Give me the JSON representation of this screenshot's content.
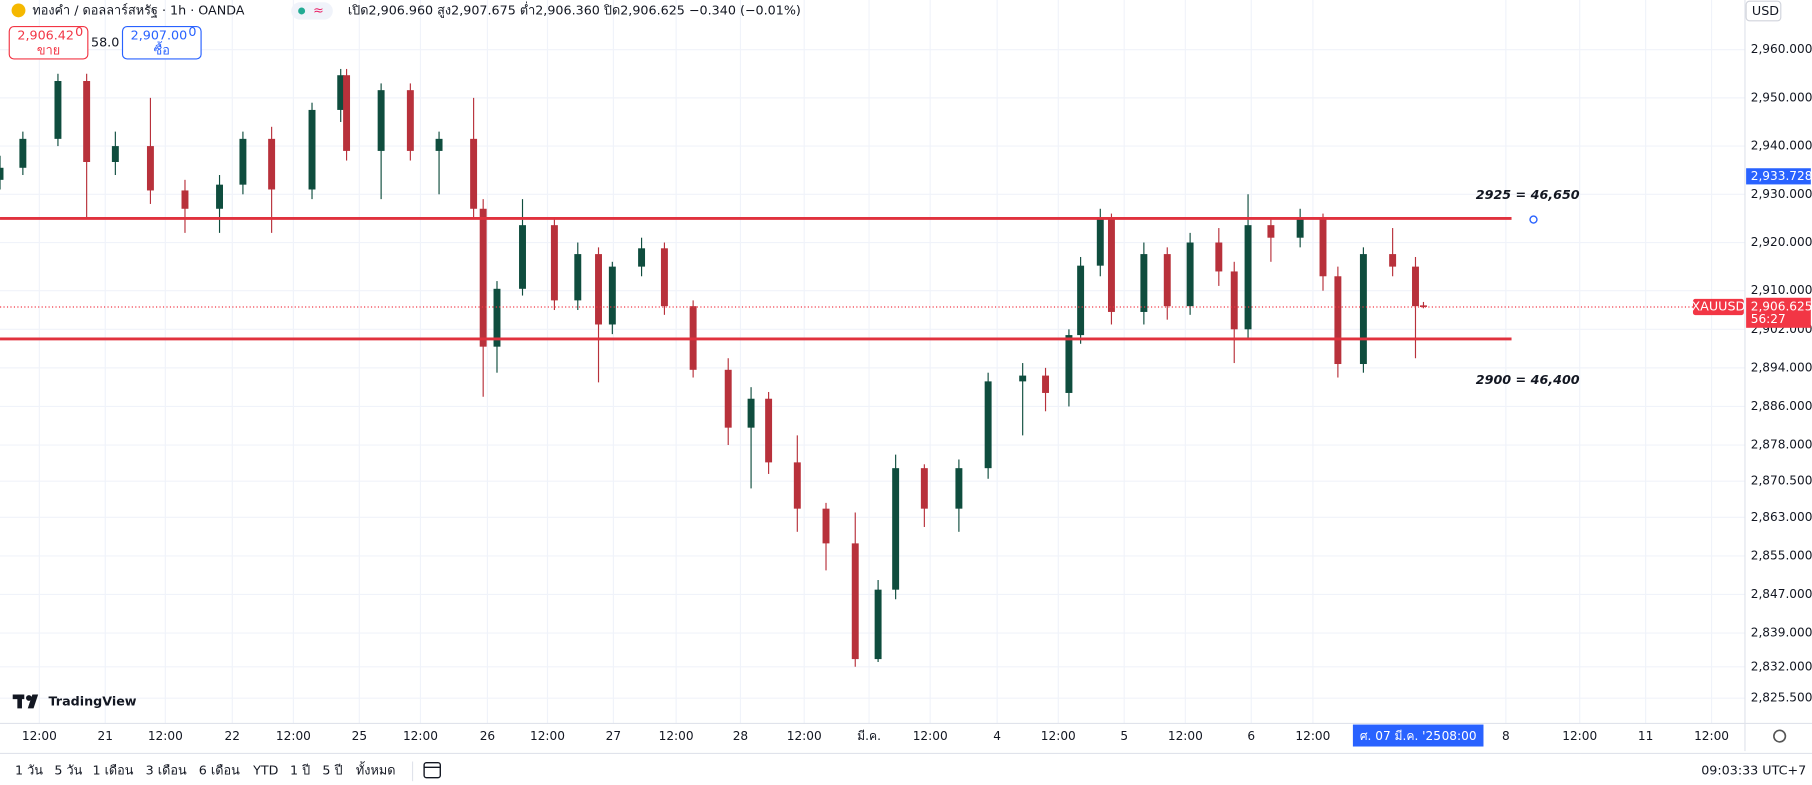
{
  "header": {
    "symbol": "ทองคำ / ดอลลาร์สหรัฐ · 1h · OANDA",
    "ohlc": "เปิด2,906.960 สูง2,907.675 ต่ำ2,906.360 ปิด2,906.625 −0.340 (−0.01%)",
    "sell_price": "2,906.42",
    "sell_sup": "0",
    "sell_label": "ขาย",
    "spread": "58.0",
    "buy_price": "2,907.00",
    "buy_sup": "0",
    "buy_label": "ซื้อ",
    "currency": "USD",
    "logo": "TradingView"
  },
  "toolbar": {
    "ranges": [
      "1 วัน",
      "5 วัน",
      "1 เดือน",
      "3 เดือน",
      "6 เดือน",
      "YTD",
      "1 ปี",
      "5 ปี",
      "ทั้งหมด"
    ],
    "clock": "09:03:33 UTC+7"
  },
  "chart_data": {
    "type": "candlestick",
    "up_color": "#0f4d3e",
    "down_color": "#b8313b",
    "xlim": [
      0,
      327.2
    ],
    "ylim": [
      2820.5,
      2970.3
    ],
    "grid": true,
    "yticks": [
      {
        "value": 2960,
        "label": "2,960.000"
      },
      {
        "value": 2950,
        "label": "2,950.000"
      },
      {
        "value": 2940,
        "label": "2,940.000"
      },
      {
        "value": 2930,
        "label": "2,930.000"
      },
      {
        "value": 2920,
        "label": "2,920.000"
      },
      {
        "value": 2910,
        "label": "2,910.000"
      },
      {
        "value": 2902,
        "label": "2,902.000"
      },
      {
        "value": 2894,
        "label": "2,894.000"
      },
      {
        "value": 2886,
        "label": "2,886.000"
      },
      {
        "value": 2878,
        "label": "2,878.000"
      },
      {
        "value": 2870.5,
        "label": "2,870.500"
      },
      {
        "value": 2863,
        "label": "2,863.000"
      },
      {
        "value": 2855,
        "label": "2,855.000"
      },
      {
        "value": 2847,
        "label": "2,847.000"
      },
      {
        "value": 2839,
        "label": "2,839.000"
      },
      {
        "value": 2832,
        "label": "2,832.000"
      },
      {
        "value": 2825.5,
        "label": "2,825.500"
      }
    ],
    "xticks": [
      {
        "value": 7.4,
        "label": "12:00"
      },
      {
        "value": 19.8,
        "label": "21"
      },
      {
        "value": 31.1,
        "label": "12:00"
      },
      {
        "value": 43.7,
        "label": "22"
      },
      {
        "value": 55.2,
        "label": "12:00"
      },
      {
        "value": 67.6,
        "label": "25"
      },
      {
        "value": 79.1,
        "label": "12:00"
      },
      {
        "value": 91.7,
        "label": "26"
      },
      {
        "value": 103,
        "label": "12:00"
      },
      {
        "value": 115.4,
        "label": "27"
      },
      {
        "value": 127.2,
        "label": "12:00"
      },
      {
        "value": 139.3,
        "label": "28"
      },
      {
        "value": 151.3,
        "label": "12:00"
      },
      {
        "value": 163.5,
        "label": "มี.ค."
      },
      {
        "value": 175,
        "label": "12:00"
      },
      {
        "value": 187.6,
        "label": "4"
      },
      {
        "value": 199.1,
        "label": "12:00"
      },
      {
        "value": 211.5,
        "label": "5"
      },
      {
        "value": 223,
        "label": "12:00"
      },
      {
        "value": 235.4,
        "label": "6"
      },
      {
        "value": 247,
        "label": "12:00"
      },
      {
        "value": 283.3,
        "label": "8"
      },
      {
        "value": 297.2,
        "label": "12:00"
      },
      {
        "value": 309.6,
        "label": "11"
      },
      {
        "value": 322,
        "label": "12:00"
      }
    ],
    "crosshair": {
      "value": 266.7,
      "label": "ศ. 07 มี.ค. '25",
      "time": "08:00"
    },
    "levels": [
      {
        "value": 2925,
        "label": "2925 = 46,650",
        "color": "#e0323e"
      },
      {
        "value": 2900,
        "label": "2900 = 46,400",
        "color": "#e0323e"
      }
    ],
    "current_price": {
      "value": 2906.625,
      "label": "2,906.625",
      "symbol": "XAUUSD",
      "countdown": "56:27",
      "color": "#f23645"
    },
    "marker_price": {
      "value": 2933.728,
      "label": "2,933.728",
      "color": "#2962ff"
    },
    "x": [
      0,
      4.3,
      10.9,
      16.3,
      21.7,
      28.3,
      34.8,
      41.3,
      45.7,
      51.1,
      58.7,
      64.1,
      65.2,
      71.7,
      77.2,
      82.6,
      89.1,
      90.9,
      93.5,
      98.3,
      104.3,
      108.7,
      112.6,
      115.2,
      120.7,
      125,
      130.4,
      137,
      141.3,
      144.6,
      150,
      155.4,
      160.9,
      165.2,
      168.5,
      173.9,
      180.4,
      185.9,
      192.4,
      196.7,
      201.1,
      203.3,
      207,
      209.1,
      215.2,
      219.6,
      223.9,
      229.3,
      232.2,
      234.8,
      239.1,
      244.6,
      248.9,
      251.7,
      256.5,
      262,
      266.3,
      267.8
    ],
    "candles": [
      {
        "o": 2933,
        "h": 2938,
        "l": 2931,
        "c": 2935.5
      },
      {
        "o": 2935.5,
        "h": 2943,
        "l": 2934,
        "c": 2941.5
      },
      {
        "o": 2941.5,
        "h": 2955,
        "l": 2940,
        "c": 2953.5
      },
      {
        "o": 2953.5,
        "h": 2955,
        "l": 2925,
        "c": 2936.7
      },
      {
        "o": 2936.7,
        "h": 2943,
        "l": 2934,
        "c": 2940
      },
      {
        "o": 2940,
        "h": 2950,
        "l": 2928,
        "c": 2930.8
      },
      {
        "o": 2930.8,
        "h": 2933,
        "l": 2922,
        "c": 2927
      },
      {
        "o": 2927,
        "h": 2934,
        "l": 2922,
        "c": 2932
      },
      {
        "o": 2932,
        "h": 2943,
        "l": 2930,
        "c": 2941.5
      },
      {
        "o": 2941.5,
        "h": 2944,
        "l": 2922,
        "c": 2931
      },
      {
        "o": 2931,
        "h": 2949,
        "l": 2929,
        "c": 2947.5
      },
      {
        "o": 2947.5,
        "h": 2956,
        "l": 2945,
        "c": 2954.7
      },
      {
        "o": 2954.7,
        "h": 2956,
        "l": 2937,
        "c": 2939
      },
      {
        "o": 2939,
        "h": 2953,
        "l": 2929,
        "c": 2951.6
      },
      {
        "o": 2951.6,
        "h": 2953,
        "l": 2937,
        "c": 2939
      },
      {
        "o": 2939,
        "h": 2943,
        "l": 2930,
        "c": 2941.5
      },
      {
        "o": 2941.5,
        "h": 2950,
        "l": 2925,
        "c": 2927
      },
      {
        "o": 2927,
        "h": 2929,
        "l": 2888,
        "c": 2898.4
      },
      {
        "o": 2898.4,
        "h": 2912,
        "l": 2893,
        "c": 2910.4
      },
      {
        "o": 2910.4,
        "h": 2929,
        "l": 2909,
        "c": 2923.6
      },
      {
        "o": 2923.6,
        "h": 2925,
        "l": 2906,
        "c": 2908
      },
      {
        "o": 2908,
        "h": 2920,
        "l": 2906,
        "c": 2917.6
      },
      {
        "o": 2917.6,
        "h": 2919,
        "l": 2891,
        "c": 2903
      },
      {
        "o": 2903,
        "h": 2916,
        "l": 2901,
        "c": 2915
      },
      {
        "o": 2915,
        "h": 2921,
        "l": 2913,
        "c": 2918.8
      },
      {
        "o": 2918.8,
        "h": 2920,
        "l": 2905,
        "c": 2906.8
      },
      {
        "o": 2906.8,
        "h": 2908,
        "l": 2892,
        "c": 2893.6
      },
      {
        "o": 2893.6,
        "h": 2896,
        "l": 2878,
        "c": 2881.6
      },
      {
        "o": 2881.6,
        "h": 2890,
        "l": 2869,
        "c": 2887.6
      },
      {
        "o": 2887.6,
        "h": 2889,
        "l": 2872,
        "c": 2874.4
      },
      {
        "o": 2874.4,
        "h": 2880,
        "l": 2860,
        "c": 2864.8
      },
      {
        "o": 2864.8,
        "h": 2866,
        "l": 2852,
        "c": 2857.6
      },
      {
        "o": 2857.6,
        "h": 2864,
        "l": 2832,
        "c": 2833.6
      },
      {
        "o": 2833.6,
        "h": 2850,
        "l": 2833,
        "c": 2848
      },
      {
        "o": 2848,
        "h": 2876,
        "l": 2846,
        "c": 2873.2
      },
      {
        "o": 2873.2,
        "h": 2874,
        "l": 2861,
        "c": 2864.8
      },
      {
        "o": 2864.8,
        "h": 2875,
        "l": 2860,
        "c": 2873.2
      },
      {
        "o": 2873.2,
        "h": 2893,
        "l": 2871,
        "c": 2891.2
      },
      {
        "o": 2891.2,
        "h": 2895,
        "l": 2880,
        "c": 2892.4
      },
      {
        "o": 2892.4,
        "h": 2894,
        "l": 2885,
        "c": 2888.8
      },
      {
        "o": 2888.8,
        "h": 2902,
        "l": 2886,
        "c": 2900.8
      },
      {
        "o": 2900.8,
        "h": 2917,
        "l": 2899,
        "c": 2915.2
      },
      {
        "o": 2915.2,
        "h": 2927,
        "l": 2913,
        "c": 2924.8
      },
      {
        "o": 2924.8,
        "h": 2926,
        "l": 2903,
        "c": 2905.6
      },
      {
        "o": 2905.6,
        "h": 2920,
        "l": 2903,
        "c": 2917.6
      },
      {
        "o": 2917.6,
        "h": 2919,
        "l": 2904,
        "c": 2906.8
      },
      {
        "o": 2906.8,
        "h": 2922,
        "l": 2905,
        "c": 2920
      },
      {
        "o": 2920,
        "h": 2923,
        "l": 2911,
        "c": 2914
      },
      {
        "o": 2914,
        "h": 2916,
        "l": 2895,
        "c": 2902
      },
      {
        "o": 2902,
        "h": 2930,
        "l": 2900,
        "c": 2923.6
      },
      {
        "o": 2923.6,
        "h": 2925,
        "l": 2916,
        "c": 2921
      },
      {
        "o": 2921,
        "h": 2927,
        "l": 2919,
        "c": 2924.8
      },
      {
        "o": 2924.8,
        "h": 2926,
        "l": 2910,
        "c": 2913
      },
      {
        "o": 2913,
        "h": 2915,
        "l": 2892,
        "c": 2894.8
      },
      {
        "o": 2894.8,
        "h": 2919,
        "l": 2893,
        "c": 2917.6
      },
      {
        "o": 2917.6,
        "h": 2923,
        "l": 2913,
        "c": 2915
      },
      {
        "o": 2915,
        "h": 2917,
        "l": 2896,
        "c": 2906.8
      },
      {
        "o": 2906.96,
        "h": 2907.675,
        "l": 2906.36,
        "c": 2906.625
      }
    ]
  }
}
